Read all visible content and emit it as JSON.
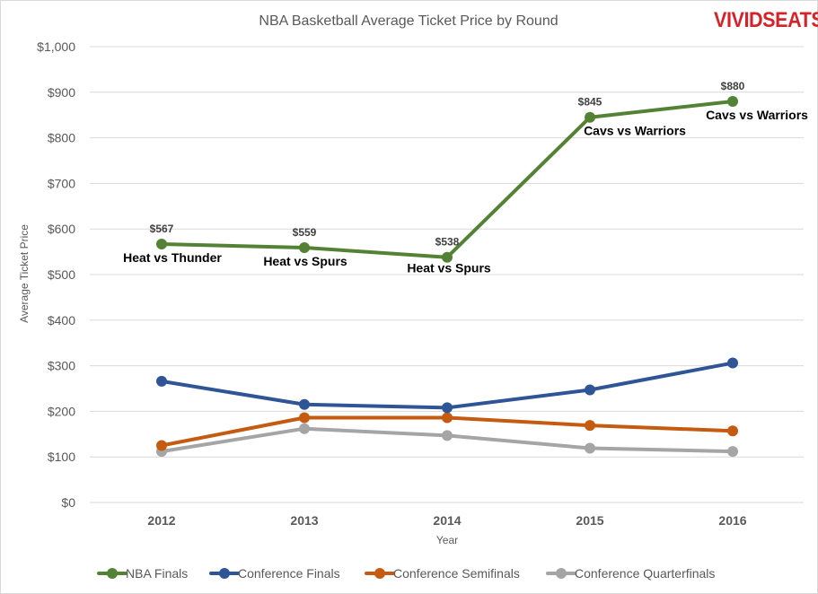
{
  "brand": {
    "part1": "VIVID",
    "part2": "SEATS",
    "mark": ".",
    "color": "#d6232a"
  },
  "chart_data": {
    "type": "line",
    "title": "NBA Basketball Average Ticket Price by Round",
    "xlabel": "Year",
    "ylabel": "Average Ticket Price",
    "x": [
      "2012",
      "2013",
      "2014",
      "2015",
      "2016"
    ],
    "ylim": [
      0,
      1000
    ],
    "yticks": [
      0,
      100,
      200,
      300,
      400,
      500,
      600,
      700,
      800,
      900,
      1000
    ],
    "ytick_labels": [
      "$0",
      "$100",
      "$200",
      "$300",
      "$400",
      "$500",
      "$600",
      "$700",
      "$800",
      "$900",
      "$1,000"
    ],
    "grid": true,
    "legend": "bottom",
    "series": [
      {
        "name": "NBA Finals",
        "color": "#548235",
        "values": [
          567,
          559,
          538,
          845,
          880
        ],
        "data_labels": [
          "$567",
          "$559",
          "$538",
          "$845",
          "$880"
        ],
        "matchups": [
          "Heat vs Thunder",
          "Heat vs Spurs",
          "Heat vs Spurs",
          "Cavs vs Warriors",
          "Cavs vs Warriors"
        ]
      },
      {
        "name": "Conference Finals",
        "color": "#2f5597",
        "values": [
          266,
          215,
          208,
          247,
          306
        ]
      },
      {
        "name": "Conference Semifinals",
        "color": "#c55a11",
        "values": [
          125,
          186,
          186,
          169,
          157
        ]
      },
      {
        "name": "Conference Quarterfinals",
        "color": "#a5a5a5",
        "values": [
          112,
          162,
          147,
          119,
          112
        ]
      }
    ]
  }
}
